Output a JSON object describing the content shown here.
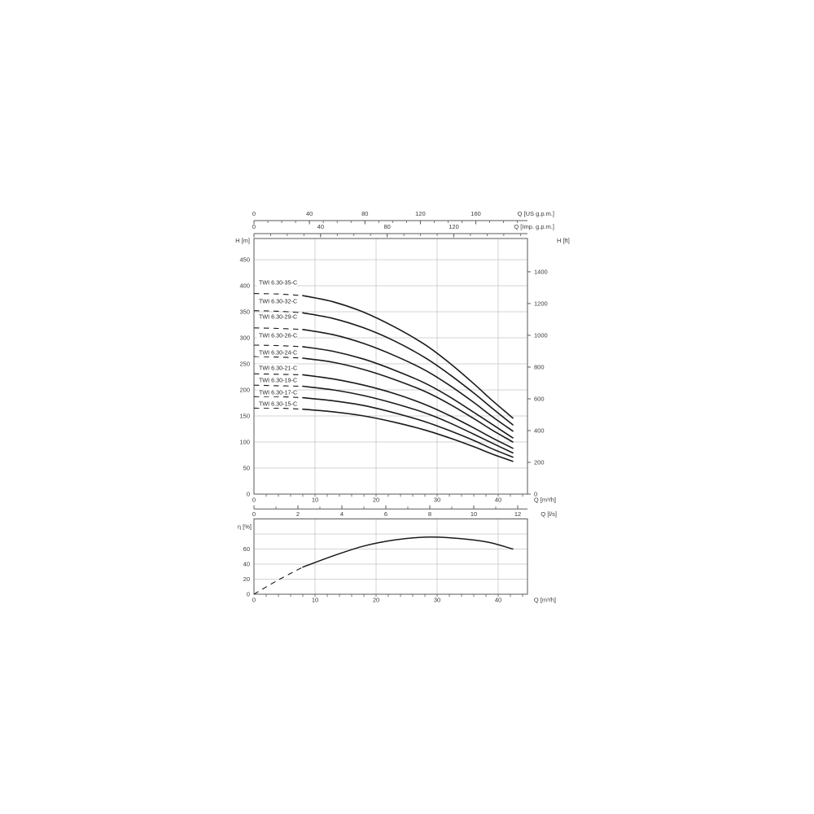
{
  "page": {
    "background": "#ffffff"
  },
  "colors": {
    "curve": "#1a1a1a",
    "grid": "#c5c5c5",
    "axis": "#5a5a5a",
    "text": "#3a3a3a"
  },
  "chart_data": [
    {
      "type": "line",
      "id": "head_flow_chart",
      "title": "",
      "x_range_m3h": [
        0,
        44.8
      ],
      "min_flow_dashed_below_m3h": 8,
      "x_axes": [
        {
          "id": "us_gpm",
          "position": "top",
          "label": "Q [US g.p.m.]",
          "major_ticks": [
            0,
            40,
            80,
            120,
            160
          ],
          "minor_step": 10,
          "m3h_per_unit": 0.22712
        },
        {
          "id": "imp_gpm",
          "position": "top",
          "label": "Q [Imp. g.p.m.]",
          "major_ticks": [
            0,
            40,
            80,
            120
          ],
          "minor_step": 10,
          "m3h_per_unit": 0.27277
        },
        {
          "id": "m3h",
          "position": "bottom",
          "label": "Q [m³/h]",
          "major_ticks": [
            0,
            10,
            20,
            30,
            40
          ],
          "minor_step": 2,
          "m3h_per_unit": 1
        },
        {
          "id": "ls",
          "position": "bottom",
          "label": "Q [l/s]",
          "major_ticks": [
            0,
            2,
            4,
            6,
            8,
            10,
            12
          ],
          "minor_step": 1,
          "m3h_per_unit": 3.6
        }
      ],
      "y_axes": [
        {
          "id": "m",
          "position": "left",
          "label": "H [m]",
          "major_ticks": [
            0,
            50,
            100,
            150,
            200,
            250,
            300,
            350,
            400,
            450
          ],
          "range": [
            0,
            490
          ]
        },
        {
          "id": "ft",
          "position": "right",
          "label": "H [ft]",
          "major_ticks": [
            0,
            200,
            400,
            600,
            800,
            1000,
            1200,
            1400
          ],
          "m_per_unit": 0.3048
        }
      ],
      "grid": {
        "x_step_m3h": 10,
        "y_step_m": 50
      },
      "q_samples_m3h": [
        0,
        4,
        8,
        13,
        18,
        23,
        28,
        32,
        36,
        39,
        42.4
      ],
      "series": [
        {
          "name": "TWI 6.30-35-C",
          "h_m": [
            385,
            384,
            381,
            369,
            349,
            321,
            287,
            252,
            212,
            180,
            146
          ]
        },
        {
          "name": "TWI 6.30-32-C",
          "h_m": [
            352,
            351,
            348,
            337,
            319,
            294,
            262,
            230,
            194,
            165,
            133
          ]
        },
        {
          "name": "TWI 6.30-29-C",
          "h_m": [
            319,
            318,
            316,
            306,
            289,
            266,
            238,
            209,
            176,
            149,
            121
          ]
        },
        {
          "name": "TWI 6.30-26-C",
          "h_m": [
            286,
            285,
            283,
            274,
            259,
            238,
            213,
            187,
            157,
            134,
            108
          ]
        },
        {
          "name": "TWI 6.30-24-C",
          "h_m": [
            264,
            263,
            261,
            253,
            239,
            220,
            197,
            173,
            145,
            123,
            100
          ]
        },
        {
          "name": "TWI 6.30-21-C",
          "h_m": [
            231,
            230,
            229,
            221,
            209,
            193,
            172,
            151,
            127,
            108,
            88
          ]
        },
        {
          "name": "TWI 6.30-19-C",
          "h_m": [
            209,
            208,
            207,
            200,
            189,
            174,
            156,
            137,
            115,
            98,
            79
          ]
        },
        {
          "name": "TWI 6.30-17-C",
          "h_m": [
            187,
            187,
            185,
            179,
            170,
            156,
            139,
            122,
            103,
            87,
            71
          ]
        },
        {
          "name": "TWI 6.30-15-C",
          "h_m": [
            165,
            165,
            163,
            158,
            150,
            138,
            123,
            108,
            91,
            77,
            63
          ]
        }
      ]
    },
    {
      "type": "line",
      "id": "efficiency_chart",
      "title": "",
      "min_flow_dashed_below_m3h": 8,
      "x_axis": {
        "label": "Q [m³/h]",
        "major_ticks": [
          0,
          10,
          20,
          30,
          40
        ],
        "minor_step": 2
      },
      "y_axis": {
        "label": "η [%]",
        "labeled_ticks": [
          0,
          20,
          40,
          60
        ],
        "grid_ticks": [
          20,
          40,
          60,
          80
        ],
        "range": [
          0,
          100
        ]
      },
      "q_samples_m3h": [
        0,
        4,
        8,
        13,
        18,
        23,
        28,
        32,
        36,
        39,
        42.4
      ],
      "series": [
        {
          "name": "η",
          "eta_pct": [
            0,
            19,
            36,
            51,
            64,
            72,
            75.8,
            75,
            72,
            68,
            60
          ]
        }
      ]
    }
  ]
}
